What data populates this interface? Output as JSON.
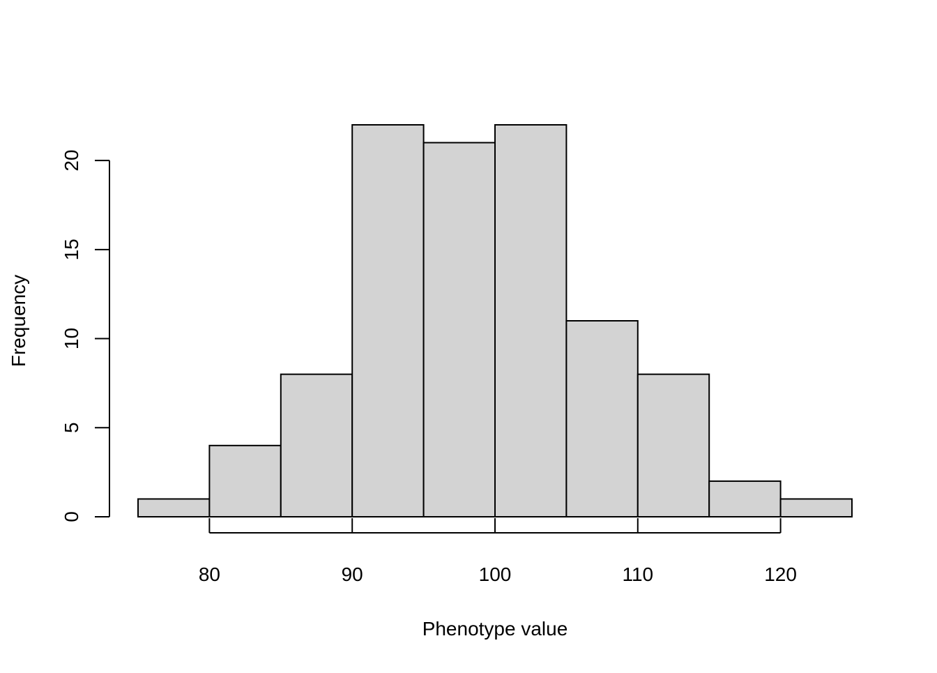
{
  "chart_data": {
    "type": "bar",
    "title": "",
    "xlabel": "Phenotype value",
    "ylabel": "Frequency",
    "bins": [
      {
        "start": 75,
        "end": 80,
        "count": 1
      },
      {
        "start": 80,
        "end": 85,
        "count": 4
      },
      {
        "start": 85,
        "end": 90,
        "count": 8
      },
      {
        "start": 90,
        "end": 95,
        "count": 22
      },
      {
        "start": 95,
        "end": 100,
        "count": 21
      },
      {
        "start": 100,
        "end": 105,
        "count": 22
      },
      {
        "start": 105,
        "end": 110,
        "count": 11
      },
      {
        "start": 110,
        "end": 115,
        "count": 8
      },
      {
        "start": 115,
        "end": 120,
        "count": 2
      },
      {
        "start": 120,
        "end": 125,
        "count": 1
      }
    ],
    "x_ticks": [
      80,
      90,
      100,
      110,
      120
    ],
    "x_tick_labels": [
      "80",
      "90",
      "100",
      "110",
      "120"
    ],
    "y_ticks": [
      0,
      5,
      10,
      15,
      20
    ],
    "y_tick_labels": [
      "0",
      "5",
      "10",
      "15",
      "20"
    ],
    "xlim": [
      75,
      125
    ],
    "ylim": [
      0,
      22
    ],
    "grid": false,
    "colors": {
      "bar_fill": "#d3d3d3",
      "bar_stroke": "#000000",
      "axis": "#000000"
    }
  }
}
